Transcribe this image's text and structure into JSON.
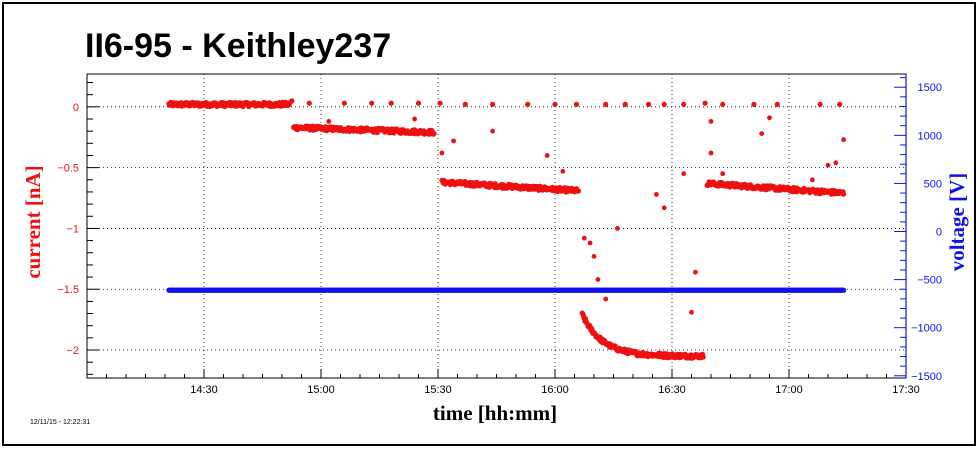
{
  "chart_data": {
    "type": "scatter",
    "title": "II6-95 - Keithley237",
    "xlabel": "time [hh:mm]",
    "ylabel_left": "current [nA]",
    "ylabel_right": "voltage [V]",
    "timestamp": "12/11/15 - 12:22:31",
    "x_unit": "minutes since 14:00",
    "xlim": [
      0,
      210
    ],
    "ylim_left": [
      -2.23,
      0.27
    ],
    "ylim_right": [
      -1523.1,
      1637.6
    ],
    "grid": true,
    "x_ticks": [
      {
        "value": 30,
        "label": "14:30"
      },
      {
        "value": 60,
        "label": "15:00"
      },
      {
        "value": 90,
        "label": "15:30"
      },
      {
        "value": 120,
        "label": "16:00"
      },
      {
        "value": 150,
        "label": "16:30"
      },
      {
        "value": 180,
        "label": "17:00"
      },
      {
        "value": 210,
        "label": "17:30"
      }
    ],
    "y_left_ticks": [
      {
        "value": 0,
        "label": "0"
      },
      {
        "value": -0.5,
        "label": "−0.5"
      },
      {
        "value": -1,
        "label": "−1"
      },
      {
        "value": -1.5,
        "label": "−1.5"
      },
      {
        "value": -2,
        "label": "−2"
      }
    ],
    "y_right_ticks": [
      {
        "value": 1500,
        "label": "1500"
      },
      {
        "value": 1000,
        "label": "1000"
      },
      {
        "value": 500,
        "label": "500"
      },
      {
        "value": 0,
        "label": "0"
      },
      {
        "value": -500,
        "label": "−500"
      },
      {
        "value": -1000,
        "label": "−1000"
      },
      {
        "value": -1500,
        "label": "−1500"
      }
    ],
    "series": [
      {
        "name": "current",
        "axis": "left",
        "color": "#ee1111",
        "segments": [
          {
            "x_start": 21,
            "x_end": 52,
            "y_start": 0.02,
            "y_end": 0.02
          },
          {
            "x_start": 53,
            "x_end": 89,
            "y_start": -0.17,
            "y_end": -0.21
          },
          {
            "x_start": 91,
            "x_end": 126,
            "y_start": -0.62,
            "y_end": -0.69
          },
          {
            "x_start": 127,
            "x_end": 158,
            "y_start": -1.71,
            "y_end": -2.05
          },
          {
            "x_start": 159,
            "x_end": 194,
            "y_start": -0.63,
            "y_end": -0.71
          }
        ],
        "spikes": [
          {
            "x": 21.5,
            "y": 0.03
          },
          {
            "x": 26,
            "y": 0.02
          },
          {
            "x": 40,
            "y": 0.03
          },
          {
            "x": 52.5,
            "y": 0.05
          },
          {
            "x": 57,
            "y": 0.03
          },
          {
            "x": 66,
            "y": 0.03
          },
          {
            "x": 73,
            "y": 0.03
          },
          {
            "x": 78,
            "y": 0.03
          },
          {
            "x": 85,
            "y": 0.03
          },
          {
            "x": 90.5,
            "y": 0.03
          },
          {
            "x": 97,
            "y": 0.02
          },
          {
            "x": 104,
            "y": 0.02
          },
          {
            "x": 113,
            "y": 0.02
          },
          {
            "x": 120,
            "y": 0.02
          },
          {
            "x": 125.5,
            "y": 0.02
          },
          {
            "x": 133,
            "y": 0.02
          },
          {
            "x": 138,
            "y": 0.02
          },
          {
            "x": 144,
            "y": 0.02
          },
          {
            "x": 148,
            "y": 0.02
          },
          {
            "x": 153,
            "y": 0.02
          },
          {
            "x": 158.5,
            "y": 0.03
          },
          {
            "x": 163,
            "y": 0.02
          },
          {
            "x": 171,
            "y": 0.02
          },
          {
            "x": 177,
            "y": 0.02
          },
          {
            "x": 188,
            "y": 0.02
          },
          {
            "x": 193,
            "y": 0.02
          }
        ],
        "outliers": [
          {
            "x": 62,
            "y": -0.12
          },
          {
            "x": 84,
            "y": -0.1
          },
          {
            "x": 91,
            "y": -0.38
          },
          {
            "x": 94,
            "y": -0.28
          },
          {
            "x": 104,
            "y": -0.2
          },
          {
            "x": 118,
            "y": -0.4
          },
          {
            "x": 122,
            "y": -0.53
          },
          {
            "x": 127.5,
            "y": -1.08
          },
          {
            "x": 129,
            "y": -1.12
          },
          {
            "x": 130,
            "y": -1.23
          },
          {
            "x": 131,
            "y": -1.42
          },
          {
            "x": 133,
            "y": -1.58
          },
          {
            "x": 136,
            "y": -1.0
          },
          {
            "x": 148,
            "y": -0.83
          },
          {
            "x": 155,
            "y": -1.69
          },
          {
            "x": 156,
            "y": -1.36
          },
          {
            "x": 153,
            "y": -0.55
          },
          {
            "x": 146,
            "y": -0.72
          },
          {
            "x": 160,
            "y": -0.38
          },
          {
            "x": 163,
            "y": -0.55
          },
          {
            "x": 181,
            "y": -0.7
          },
          {
            "x": 186,
            "y": -0.6
          },
          {
            "x": 190,
            "y": -0.48
          },
          {
            "x": 192,
            "y": -0.46
          },
          {
            "x": 194,
            "y": -0.27
          },
          {
            "x": 175,
            "y": -0.09
          },
          {
            "x": 173,
            "y": -0.22
          },
          {
            "x": 160,
            "y": -0.12
          }
        ]
      },
      {
        "name": "voltage",
        "axis": "right",
        "color": "#1111ee",
        "segments": [
          {
            "x_start": 21,
            "x_end": 194,
            "y_start": -610,
            "y_end": -610
          }
        ]
      }
    ]
  }
}
